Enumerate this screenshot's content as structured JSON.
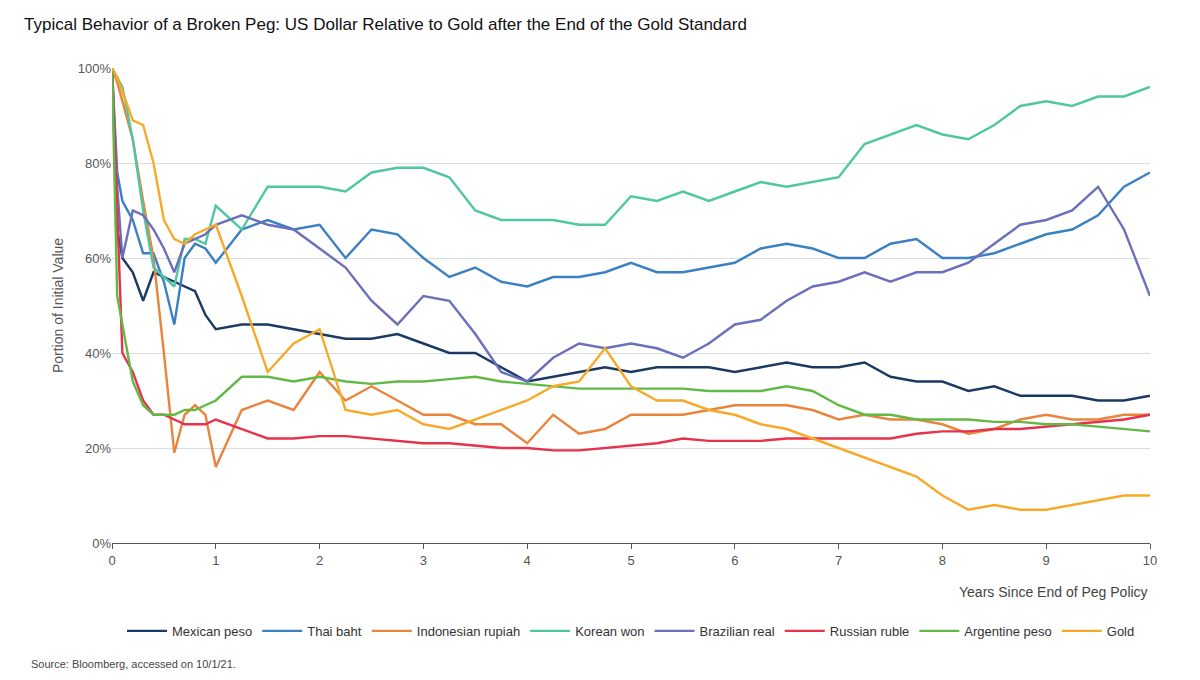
{
  "chart_data": {
    "type": "line",
    "title": "Typical Behavior of a Broken Peg: US Dollar Relative to Gold after the End of the Gold Standard",
    "x_label": "Years Since End of Peg Policy",
    "y_label": "Portion of Initial Value",
    "source": "Source: Bloomberg, accessed on 10/1/21.",
    "grid": true,
    "legend": "bottom",
    "xlim": [
      0,
      10
    ],
    "xticks": [
      0,
      1,
      2,
      3,
      4,
      5,
      6,
      7,
      8,
      9,
      10
    ],
    "ylim": [
      0,
      100
    ],
    "yticks": [
      {
        "value": 0,
        "label": "0%"
      },
      {
        "value": 20,
        "label": "20%"
      },
      {
        "value": 40,
        "label": "40%"
      },
      {
        "value": 60,
        "label": "60%"
      },
      {
        "value": 80,
        "label": "80%"
      },
      {
        "value": 100,
        "label": "100%"
      }
    ],
    "x": [
      0,
      0.05,
      0.1,
      0.2,
      0.3,
      0.4,
      0.5,
      0.6,
      0.7,
      0.8,
      0.9,
      1,
      1.25,
      1.5,
      1.75,
      2,
      2.25,
      2.5,
      2.75,
      3,
      3.25,
      3.5,
      3.75,
      4,
      4.25,
      4.5,
      4.75,
      5,
      5.25,
      5.5,
      5.75,
      6,
      6.25,
      6.5,
      6.75,
      7,
      7.25,
      7.5,
      7.75,
      8,
      8.25,
      8.5,
      8.75,
      9,
      9.25,
      9.5,
      9.75,
      10
    ],
    "series": [
      {
        "name": "Mexican peso",
        "color": "#1b3a63",
        "values": [
          100,
          66,
          60,
          57,
          51,
          57,
          56,
          55,
          54,
          53,
          48,
          45,
          46,
          46,
          45,
          44,
          43,
          43,
          44,
          42,
          40,
          40,
          37,
          34,
          35,
          36,
          37,
          36,
          37,
          37,
          37,
          36,
          37,
          38,
          37,
          37,
          38,
          35,
          34,
          34,
          32,
          33,
          31,
          31,
          31,
          30,
          30,
          31
        ]
      },
      {
        "name": "Thai baht",
        "color": "#3a80c3",
        "values": [
          100,
          78,
          72,
          68,
          61,
          61,
          55,
          46,
          60,
          63,
          62,
          59,
          66,
          68,
          66,
          67,
          60,
          66,
          65,
          60,
          56,
          58,
          55,
          54,
          56,
          56,
          57,
          59,
          57,
          57,
          58,
          59,
          62,
          63,
          62,
          60,
          60,
          63,
          64,
          60,
          60,
          61,
          63,
          65,
          66,
          69,
          75,
          78
        ]
      },
      {
        "name": "Indonesian rupiah",
        "color": "#e9843d",
        "values": [
          100,
          97,
          93,
          85,
          72,
          60,
          40,
          19,
          27,
          29,
          27,
          16,
          28,
          30,
          28,
          36,
          30,
          33,
          30,
          27,
          27,
          25,
          25,
          21,
          27,
          23,
          24,
          27,
          27,
          27,
          28,
          29,
          29,
          29,
          28,
          26,
          27,
          26,
          26,
          25,
          23,
          24,
          26,
          27,
          26,
          26,
          27,
          27
        ]
      },
      {
        "name": "Korean won",
        "color": "#4fc7a2",
        "values": [
          100,
          98,
          96,
          85,
          70,
          58,
          56,
          54,
          64,
          64,
          63,
          71,
          66,
          75,
          75,
          75,
          74,
          78,
          79,
          79,
          77,
          70,
          68,
          68,
          68,
          67,
          67,
          73,
          72,
          74,
          72,
          74,
          76,
          75,
          76,
          77,
          84,
          86,
          88,
          86,
          85,
          88,
          92,
          93,
          92,
          94,
          94,
          96
        ]
      },
      {
        "name": "Brazilian real",
        "color": "#6c6fba",
        "values": [
          100,
          75,
          60,
          70,
          69,
          66,
          62,
          57,
          63,
          64,
          65,
          67,
          69,
          67,
          66,
          62,
          58,
          51,
          46,
          52,
          51,
          44,
          36,
          34,
          39,
          42,
          41,
          42,
          41,
          39,
          42,
          46,
          47,
          51,
          54,
          55,
          57,
          55,
          57,
          57,
          59,
          63,
          67,
          68,
          70,
          75,
          66,
          52
        ]
      },
      {
        "name": "Russian ruble",
        "color": "#e6334b",
        "values": [
          100,
          72,
          40,
          36,
          30,
          27,
          27,
          26,
          25,
          25,
          25,
          26,
          24,
          22,
          22,
          22.5,
          22.5,
          22,
          21.5,
          21,
          21,
          20.5,
          20,
          20,
          19.5,
          19.5,
          20,
          20.5,
          21,
          22,
          21.5,
          21.5,
          21.5,
          22,
          22,
          22,
          22,
          22,
          23,
          23.5,
          23.5,
          24,
          24,
          24.5,
          25,
          25.5,
          26,
          27
        ]
      },
      {
        "name": "Argentine peso",
        "color": "#63b946",
        "values": [
          100,
          52,
          46,
          34,
          29,
          27,
          27,
          27,
          28,
          28,
          29,
          30,
          35,
          35,
          34,
          35,
          34,
          33.5,
          34,
          34,
          34.5,
          35,
          34,
          33.5,
          33,
          32.5,
          32.5,
          32.5,
          32.5,
          32.5,
          32,
          32,
          32,
          33,
          32,
          29,
          27,
          27,
          26,
          26,
          26,
          25.5,
          25.5,
          25,
          25,
          24.5,
          24,
          23.5
        ]
      },
      {
        "name": "Gold",
        "color": "#f7a92a",
        "values": [
          100,
          98,
          95,
          89,
          88,
          80,
          68,
          64,
          63,
          65,
          66,
          67,
          52,
          36,
          42,
          45,
          28,
          27,
          28,
          25,
          24,
          26,
          28,
          30,
          33,
          34,
          41,
          33,
          30,
          30,
          28,
          27,
          25,
          24,
          22,
          20,
          18,
          16,
          14,
          10,
          7,
          8,
          7,
          7,
          8,
          9,
          10,
          10
        ]
      }
    ]
  }
}
